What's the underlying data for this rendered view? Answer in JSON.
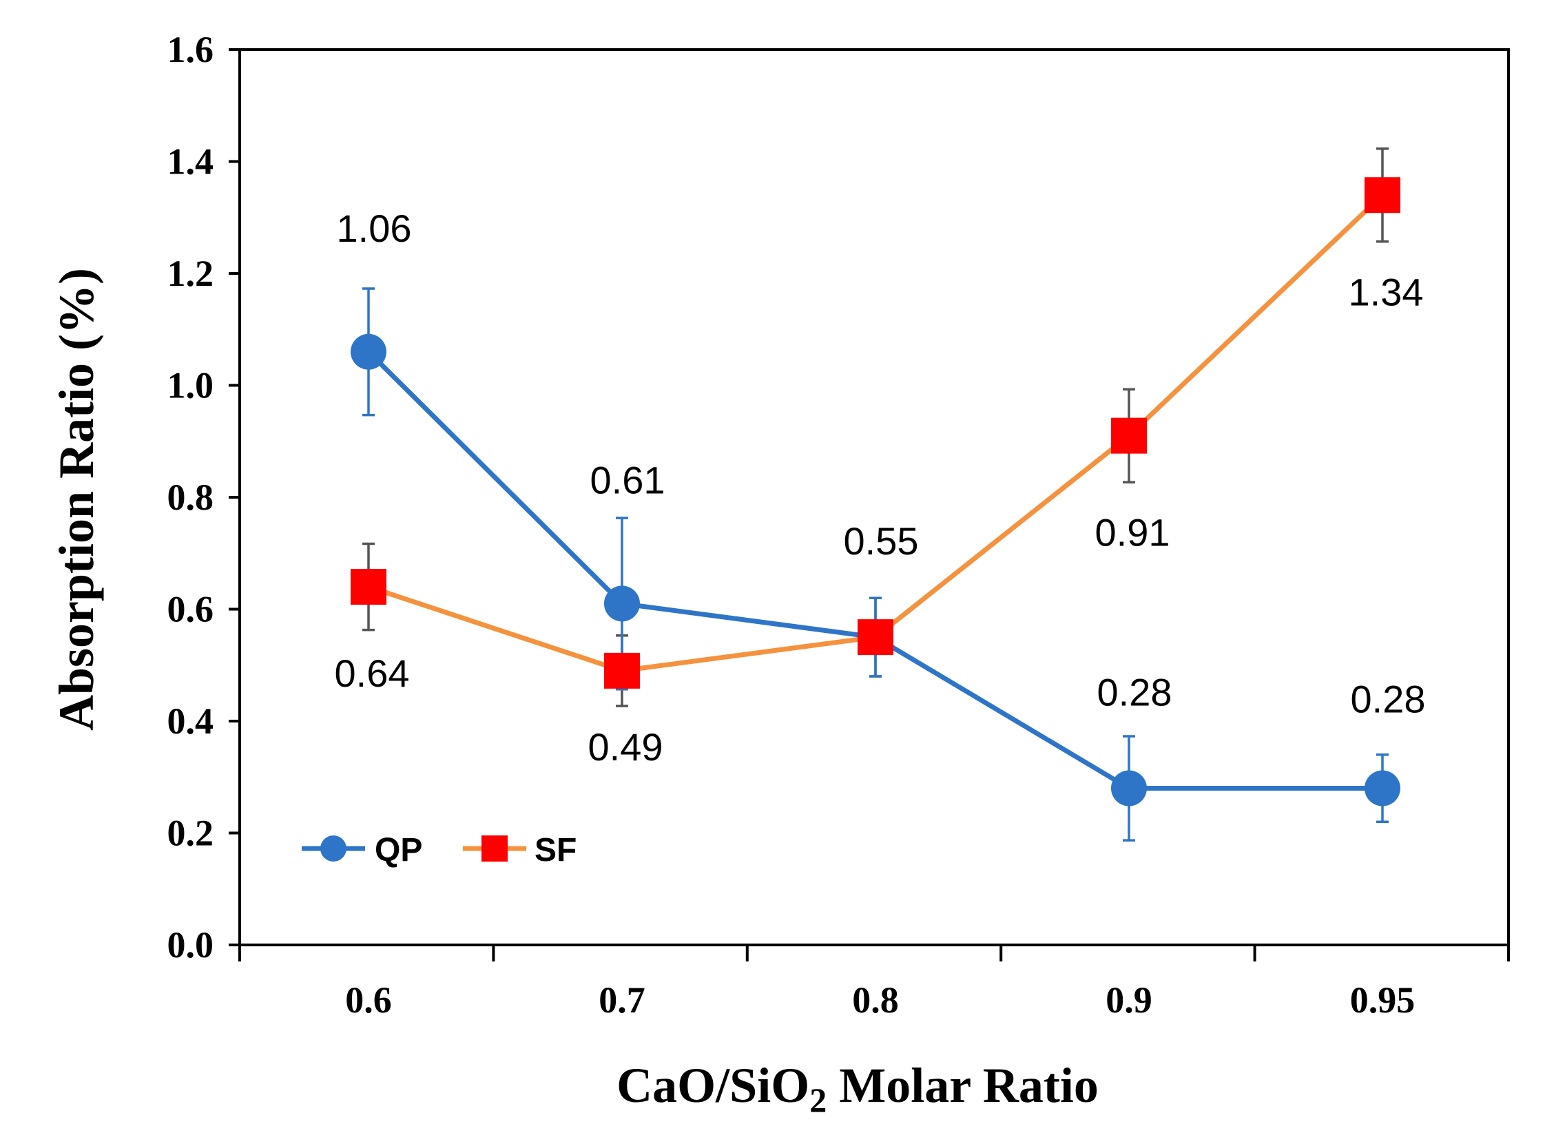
{
  "chart_data": {
    "type": "line",
    "title": "",
    "xlabel_main": "CaO/SiO",
    "xlabel_sub": "2",
    "xlabel_rest": " Molar Ratio",
    "ylabel": "Absorption Ratio (%)",
    "categories": [
      "0.6",
      "0.7",
      "0.8",
      "0.9",
      "0.95"
    ],
    "ylim": [
      0,
      1.6
    ],
    "yticks": [
      "0.0",
      "0.2",
      "0.4",
      "0.6",
      "0.8",
      "1.0",
      "1.2",
      "1.4",
      "1.6"
    ],
    "grid": false,
    "legend_position": "bottom-left",
    "series": [
      {
        "name": "QP",
        "color": "#2E75C8",
        "marker": "circle",
        "values": [
          1.06,
          0.61,
          0.55,
          0.28,
          0.28
        ],
        "labels": [
          "1.06",
          "0.61",
          "0.55",
          "0.28",
          "0.28"
        ],
        "error": [
          0.113,
          0.153,
          0.07,
          0.093,
          0.06
        ]
      },
      {
        "name": "SF",
        "color": "#FF0000",
        "line_color": "#F5923E",
        "marker": "square",
        "values": [
          0.64,
          0.49,
          0.55,
          0.91,
          1.34
        ],
        "labels": [
          "0.64",
          "0.49",
          "",
          "0.91",
          "1.34"
        ],
        "error": [
          0.077,
          0.063,
          0.07,
          0.083,
          0.083
        ]
      }
    ]
  }
}
